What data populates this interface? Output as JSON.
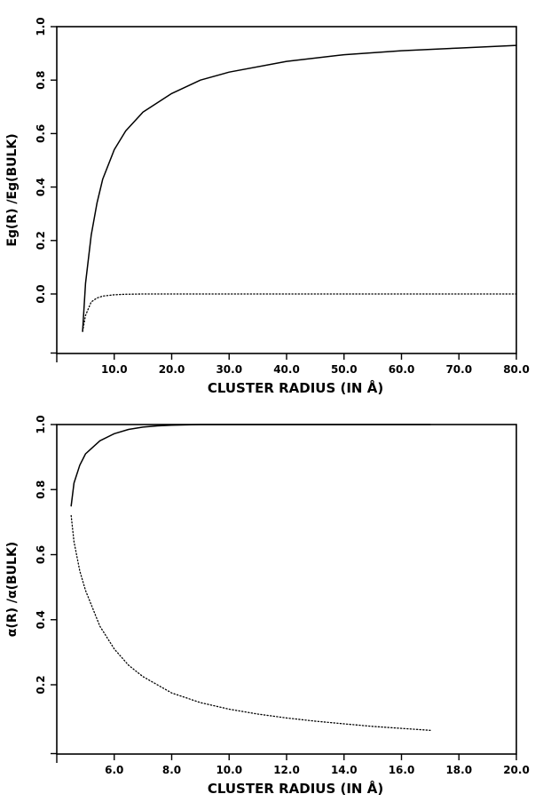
{
  "chart_data": [
    {
      "type": "line",
      "xlabel": "CLUSTER RADIUS (IN Å)",
      "ylabel": "Eg(R) /Eg(BULK)",
      "xlim": [
        0,
        80
      ],
      "ylim": [
        -0.2,
        1.0
      ],
      "x_ticks": [
        10,
        20,
        30,
        40,
        50,
        60,
        70,
        80
      ],
      "x_tick_labels": [
        "10.0",
        "20.0",
        "30.0",
        "40.0",
        "50.0",
        "60.0",
        "70.0",
        "80.0"
      ],
      "y_ticks": [
        0.0,
        0.2,
        0.4,
        0.6,
        0.8,
        1.0
      ],
      "y_tick_labels": [
        "0.0",
        "0.2",
        "0.4",
        "0.6",
        "0.8",
        "1.0"
      ],
      "grid": false,
      "series": [
        {
          "style": "solid",
          "x": [
            4.5,
            5,
            6,
            7,
            8,
            10,
            12,
            15,
            20,
            25,
            30,
            40,
            50,
            60,
            70,
            80
          ],
          "y": [
            -0.14,
            0.04,
            0.22,
            0.34,
            0.43,
            0.54,
            0.61,
            0.68,
            0.75,
            0.8,
            0.83,
            0.87,
            0.895,
            0.91,
            0.92,
            0.93
          ]
        },
        {
          "style": "dotted",
          "x": [
            4.5,
            5,
            6,
            7,
            8,
            10,
            12,
            15,
            20,
            30,
            40,
            50,
            60,
            70,
            80
          ],
          "y": [
            -0.14,
            -0.08,
            -0.03,
            -0.015,
            -0.008,
            -0.003,
            -0.001,
            0.0,
            0.0,
            0.0,
            0.0,
            0.0,
            0.0,
            0.0,
            0.0
          ]
        }
      ]
    },
    {
      "type": "line",
      "xlabel": "CLUSTER RADIUS (IN Å)",
      "ylabel": "α(R) /α(BULK)",
      "xlim": [
        4,
        20
      ],
      "ylim": [
        0.05,
        1.0
      ],
      "x_ticks": [
        6,
        8,
        10,
        12,
        14,
        16,
        18,
        20
      ],
      "x_tick_labels": [
        "6.0",
        "8.0",
        "10.0",
        "12.0",
        "14.0",
        "16.0",
        "18.0",
        "20.0"
      ],
      "y_ticks": [
        0.2,
        0.4,
        0.6,
        0.8,
        1.0
      ],
      "y_tick_labels": [
        "0.2",
        "0.4",
        "0.6",
        "0.8",
        "1.0"
      ],
      "grid": false,
      "series": [
        {
          "style": "solid",
          "x": [
            4.5,
            4.6,
            4.8,
            5.0,
            5.5,
            6.0,
            6.5,
            7.0,
            7.5,
            8.0,
            9.0,
            10.0,
            12.0,
            14.0,
            16.0,
            17.0
          ],
          "y": [
            0.75,
            0.82,
            0.875,
            0.91,
            0.95,
            0.972,
            0.985,
            0.992,
            0.996,
            0.998,
            1.0,
            1.0,
            1.0,
            1.0,
            1.0,
            1.0
          ]
        },
        {
          "style": "dotted",
          "x": [
            4.5,
            4.6,
            4.8,
            5.0,
            5.5,
            6.0,
            6.5,
            7.0,
            8.0,
            9.0,
            10.0,
            11.0,
            12.0,
            13.0,
            14.0,
            15.0,
            16.0,
            17.0
          ],
          "y": [
            0.72,
            0.64,
            0.55,
            0.49,
            0.38,
            0.31,
            0.26,
            0.225,
            0.175,
            0.145,
            0.125,
            0.11,
            0.098,
            0.088,
            0.08,
            0.072,
            0.066,
            0.06
          ]
        }
      ]
    }
  ]
}
